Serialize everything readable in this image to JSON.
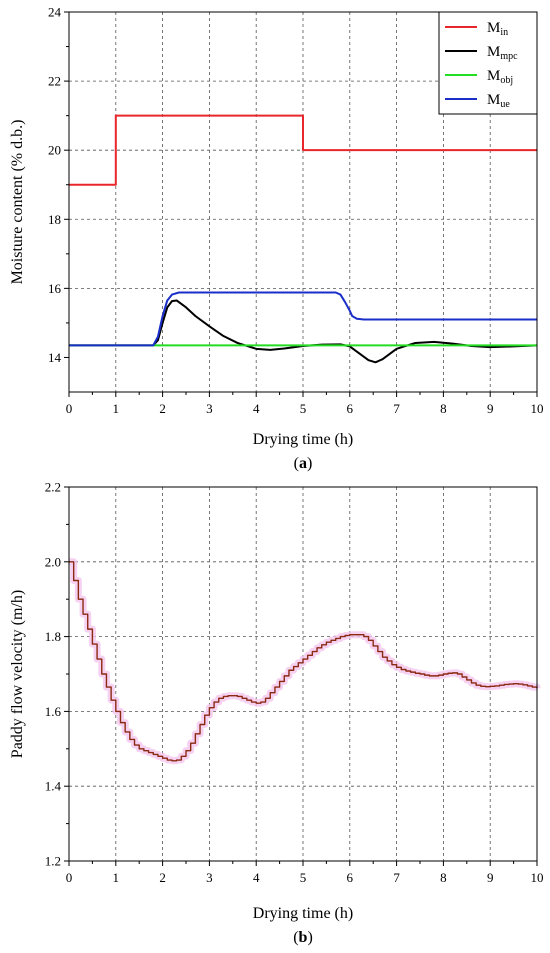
{
  "chart_data": [
    {
      "type": "line",
      "panel_label": {
        "open": "(",
        "letter": "a",
        "close": ")"
      },
      "xlabel": "Drying time (h)",
      "ylabel": "Moisture content (% d.b.)",
      "xlim": [
        0,
        10
      ],
      "ylim": [
        13,
        24
      ],
      "xticks": [
        0,
        1,
        2,
        3,
        4,
        5,
        6,
        7,
        8,
        9,
        10
      ],
      "yticks": [
        14,
        16,
        18,
        20,
        22,
        24
      ],
      "grid": true,
      "legend_position": "top-right",
      "series": [
        {
          "name": "M",
          "sub": "in",
          "color": "#e8262b",
          "x": [
            0,
            1,
            1,
            5,
            5,
            10
          ],
          "y": [
            19,
            19,
            21,
            21,
            20,
            20
          ]
        },
        {
          "name": "M",
          "sub": "mpc",
          "color": "#000000",
          "x": [
            0,
            1.8,
            1.9,
            2.0,
            2.1,
            2.2,
            2.3,
            2.5,
            2.7,
            3.0,
            3.3,
            3.6,
            4.0,
            4.3,
            4.6,
            5.0,
            5.4,
            5.8,
            6.0,
            6.2,
            6.4,
            6.55,
            6.7,
            7.0,
            7.4,
            7.8,
            8.2,
            8.6,
            9.0,
            9.5,
            10
          ],
          "y": [
            14.35,
            14.35,
            14.5,
            15.0,
            15.45,
            15.63,
            15.65,
            15.45,
            15.2,
            14.9,
            14.62,
            14.42,
            14.25,
            14.22,
            14.26,
            14.33,
            14.37,
            14.38,
            14.32,
            14.12,
            13.92,
            13.86,
            13.95,
            14.25,
            14.42,
            14.45,
            14.4,
            14.33,
            14.3,
            14.32,
            14.35
          ]
        },
        {
          "name": "M",
          "sub": "obj",
          "color": "#22dd22",
          "x": [
            0,
            10
          ],
          "y": [
            14.35,
            14.35
          ]
        },
        {
          "name": "M",
          "sub": "ue",
          "color": "#1a2ec8",
          "x": [
            0,
            1.8,
            1.9,
            2.0,
            2.1,
            2.2,
            2.35,
            2.6,
            3.0,
            5.0,
            5.7,
            5.8,
            5.9,
            6.0,
            6.05,
            6.15,
            6.3,
            7.0,
            10
          ],
          "y": [
            14.35,
            14.35,
            14.6,
            15.2,
            15.65,
            15.82,
            15.88,
            15.88,
            15.88,
            15.88,
            15.88,
            15.82,
            15.6,
            15.35,
            15.2,
            15.12,
            15.1,
            15.1,
            15.1
          ]
        }
      ]
    },
    {
      "type": "line",
      "panel_label": {
        "open": "(",
        "letter": "b",
        "close": ")"
      },
      "xlabel": "Drying time (h)",
      "ylabel": "Paddy flow velocity (m/h)",
      "xlim": [
        0,
        10
      ],
      "ylim": [
        1.2,
        2.2
      ],
      "xticks": [
        0,
        1,
        2,
        3,
        4,
        5,
        6,
        7,
        8,
        9,
        10
      ],
      "yticks": [
        1.2,
        1.4,
        1.6,
        1.8,
        2.0,
        2.2
      ],
      "grid": true,
      "series": [
        {
          "color": "#8b2a12",
          "halo_color": "#f4c6ee",
          "step": 0.1,
          "x": [
            0,
            0.1,
            0.2,
            0.3,
            0.4,
            0.5,
            0.6,
            0.7,
            0.8,
            0.9,
            1.0,
            1.1,
            1.2,
            1.3,
            1.4,
            1.5,
            1.6,
            1.7,
            1.8,
            1.9,
            2.0,
            2.1,
            2.2,
            2.3,
            2.4,
            2.5,
            2.6,
            2.7,
            2.8,
            2.9,
            3.0,
            3.1,
            3.2,
            3.3,
            3.4,
            3.5,
            3.6,
            3.7,
            3.8,
            3.9,
            4.0,
            4.1,
            4.2,
            4.3,
            4.4,
            4.5,
            4.6,
            4.7,
            4.8,
            4.9,
            5.0,
            5.1,
            5.2,
            5.3,
            5.4,
            5.5,
            5.6,
            5.7,
            5.8,
            5.9,
            6.0,
            6.1,
            6.2,
            6.3,
            6.4,
            6.5,
            6.6,
            6.7,
            6.8,
            6.9,
            7.0,
            7.1,
            7.2,
            7.3,
            7.4,
            7.5,
            7.6,
            7.7,
            7.8,
            7.9,
            8.0,
            8.1,
            8.2,
            8.3,
            8.4,
            8.5,
            8.6,
            8.7,
            8.8,
            8.9,
            9.0,
            9.1,
            9.2,
            9.3,
            9.4,
            9.5,
            9.6,
            9.7,
            9.8,
            9.9,
            10.0
          ],
          "y": [
            2.0,
            1.95,
            1.9,
            1.86,
            1.82,
            1.78,
            1.74,
            1.7,
            1.665,
            1.63,
            1.6,
            1.57,
            1.545,
            1.525,
            1.51,
            1.5,
            1.495,
            1.49,
            1.485,
            1.48,
            1.475,
            1.47,
            1.468,
            1.47,
            1.48,
            1.495,
            1.515,
            1.54,
            1.565,
            1.59,
            1.61,
            1.625,
            1.635,
            1.64,
            1.642,
            1.642,
            1.64,
            1.635,
            1.63,
            1.625,
            1.622,
            1.625,
            1.635,
            1.65,
            1.665,
            1.68,
            1.695,
            1.71,
            1.72,
            1.73,
            1.74,
            1.75,
            1.76,
            1.77,
            1.778,
            1.785,
            1.79,
            1.795,
            1.8,
            1.803,
            1.805,
            1.805,
            1.805,
            1.8,
            1.79,
            1.775,
            1.76,
            1.745,
            1.735,
            1.725,
            1.718,
            1.712,
            1.708,
            1.705,
            1.702,
            1.7,
            1.697,
            1.695,
            1.695,
            1.697,
            1.7,
            1.702,
            1.703,
            1.7,
            1.692,
            1.684,
            1.676,
            1.67,
            1.667,
            1.666,
            1.667,
            1.668,
            1.67,
            1.672,
            1.673,
            1.674,
            1.673,
            1.671,
            1.668,
            1.665,
            1.662
          ]
        }
      ]
    }
  ]
}
